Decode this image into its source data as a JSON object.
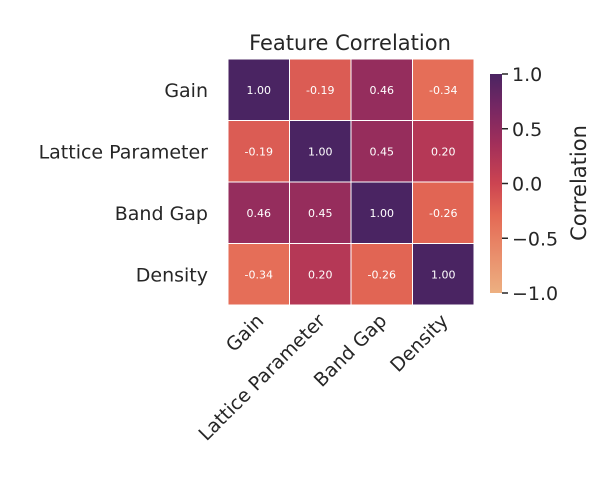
{
  "chart_data": {
    "type": "heatmap",
    "title": "Feature Correlation",
    "rows": [
      "Gain",
      "Lattice Parameter",
      "Band Gap",
      "Density"
    ],
    "cols": [
      "Gain",
      "Lattice Parameter",
      "Band Gap",
      "Density"
    ],
    "values": [
      [
        1.0,
        -0.19,
        0.46,
        -0.34
      ],
      [
        -0.19,
        1.0,
        0.45,
        0.2
      ],
      [
        0.46,
        0.45,
        1.0,
        -0.26
      ],
      [
        -0.34,
        0.2,
        -0.26,
        1.0
      ]
    ],
    "annotations": [
      [
        "1.00",
        "-0.19",
        "0.46",
        "-0.34"
      ],
      [
        "-0.19",
        "1.00",
        "0.45",
        "0.20"
      ],
      [
        "0.46",
        "0.45",
        "1.00",
        "-0.26"
      ],
      [
        "-0.34",
        "0.20",
        "-0.26",
        "1.00"
      ]
    ],
    "colorbar": {
      "label": "Correlation",
      "range": [
        -1.0,
        1.0
      ],
      "ticks": [
        1.0,
        0.5,
        0.0,
        -0.5,
        -1.0
      ],
      "tick_labels": [
        "1.0",
        "0.5",
        "0.0",
        "−0.5",
        "−1.0"
      ]
    },
    "colormap": "flare",
    "colors": {
      "low": "#edb081",
      "mid": "#e35c4f",
      "high": "#4a2462"
    },
    "grid": false
  }
}
